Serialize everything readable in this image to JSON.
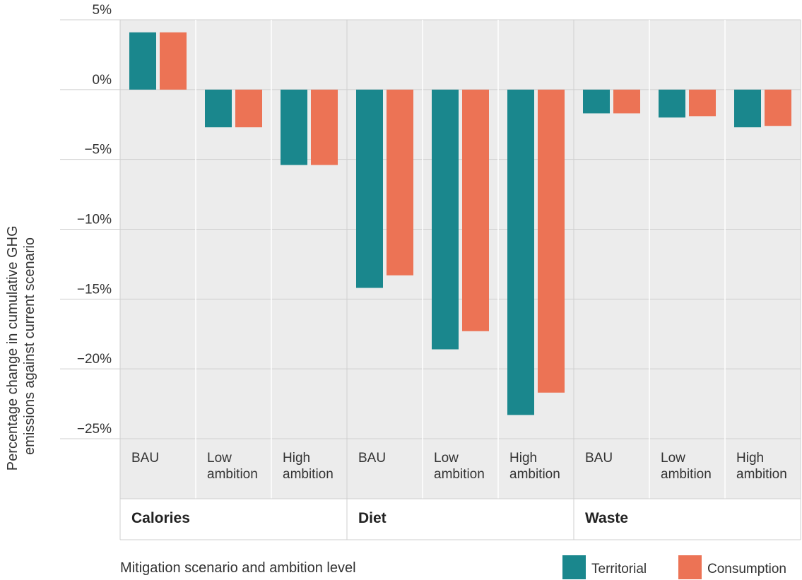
{
  "chart_data": {
    "type": "bar",
    "ylabel_lines": [
      "Percentage change in cumulative GHG",
      "emissions against current scenario"
    ],
    "xlabel": "Mitigation scenario and ambition level",
    "ylim": [
      -25,
      5
    ],
    "yticks": [
      5,
      0,
      -5,
      -10,
      -15,
      -20,
      -25
    ],
    "ytick_labels": [
      "5%",
      "0%",
      "−5%",
      "−10%",
      "−15%",
      "−20%",
      "−25%"
    ],
    "grid": true,
    "legend_position": "bottom-right",
    "groups": [
      {
        "name": "Calories",
        "categories": [
          [
            "BAU"
          ],
          [
            "Low",
            "ambition"
          ],
          [
            "High",
            "ambition"
          ]
        ]
      },
      {
        "name": "Diet",
        "categories": [
          [
            "BAU"
          ],
          [
            "Low",
            "ambition"
          ],
          [
            "High",
            "ambition"
          ]
        ]
      },
      {
        "name": "Waste",
        "categories": [
          [
            "BAU"
          ],
          [
            "Low",
            "ambition"
          ],
          [
            "High",
            "ambition"
          ]
        ]
      }
    ],
    "series": [
      {
        "name": "Territorial",
        "color": "#1a878d",
        "values": [
          4.1,
          -2.7,
          -5.4,
          -14.2,
          -18.6,
          -23.3,
          -1.7,
          -2.0,
          -2.7
        ]
      },
      {
        "name": "Consumption",
        "color": "#ec7355",
        "values": [
          4.1,
          -2.7,
          -5.4,
          -13.3,
          -17.3,
          -21.7,
          -1.7,
          -1.9,
          -2.6
        ]
      }
    ]
  }
}
